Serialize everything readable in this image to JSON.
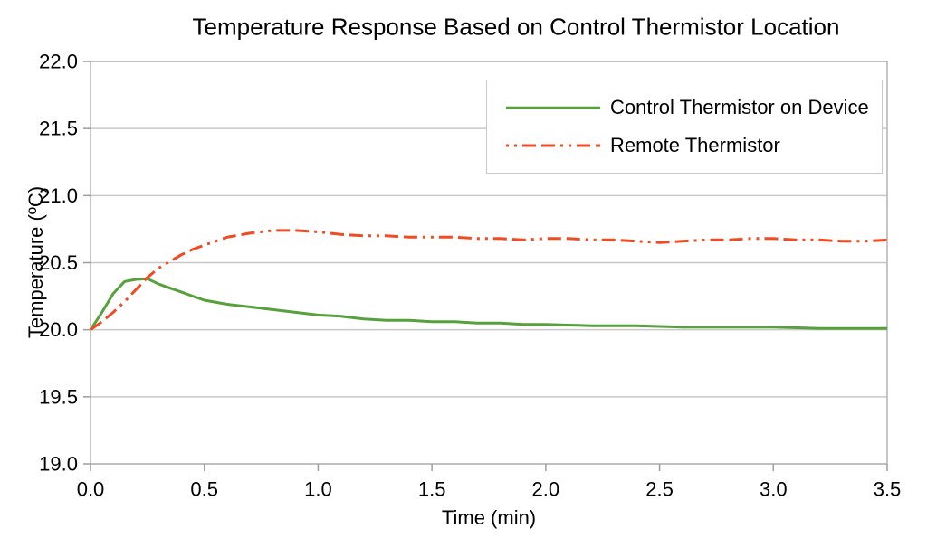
{
  "chart_data": {
    "type": "line",
    "title": "Temperature Response Based on Control Thermistor Location",
    "xlabel": "Time (min)",
    "ylabel": "Temperature (ºC)",
    "xlim": [
      0,
      3.5
    ],
    "ylim": [
      19.0,
      22.0
    ],
    "x_tick_labels": [
      "0.0",
      "0.5",
      "1.0",
      "1.5",
      "2.0",
      "2.5",
      "3.0",
      "3.5"
    ],
    "y_tick_labels": [
      "19.0",
      "19.5",
      "20.0",
      "20.5",
      "21.0",
      "21.5",
      "22.0"
    ],
    "grid": "horizontal-only",
    "legend_position": "top-right",
    "axis_color": "#b4b4b4",
    "gridline_color": "#c8c8c8",
    "tick_color": "#9e9e9e",
    "series": [
      {
        "name": "Control Thermistor on Device",
        "color": "#57a13d",
        "line_style": "solid",
        "points": [
          [
            0.0,
            20.0
          ],
          [
            0.05,
            20.13
          ],
          [
            0.1,
            20.27
          ],
          [
            0.15,
            20.36
          ],
          [
            0.2,
            20.375
          ],
          [
            0.25,
            20.38
          ],
          [
            0.3,
            20.34
          ],
          [
            0.35,
            20.31
          ],
          [
            0.4,
            20.28
          ],
          [
            0.45,
            20.25
          ],
          [
            0.5,
            20.22
          ],
          [
            0.6,
            20.19
          ],
          [
            0.7,
            20.17
          ],
          [
            0.8,
            20.15
          ],
          [
            0.9,
            20.13
          ],
          [
            1.0,
            20.11
          ],
          [
            1.1,
            20.1
          ],
          [
            1.2,
            20.08
          ],
          [
            1.3,
            20.07
          ],
          [
            1.4,
            20.07
          ],
          [
            1.5,
            20.06
          ],
          [
            1.6,
            20.06
          ],
          [
            1.7,
            20.05
          ],
          [
            1.8,
            20.05
          ],
          [
            1.9,
            20.04
          ],
          [
            2.0,
            20.04
          ],
          [
            2.2,
            20.03
          ],
          [
            2.4,
            20.03
          ],
          [
            2.6,
            20.02
          ],
          [
            2.8,
            20.02
          ],
          [
            3.0,
            20.02
          ],
          [
            3.2,
            20.01
          ],
          [
            3.4,
            20.01
          ],
          [
            3.5,
            20.01
          ]
        ]
      },
      {
        "name": "Remote Thermistor",
        "color": "#f24a21",
        "line_style": "long-dash-dash-dot-dot",
        "points": [
          [
            0.0,
            20.0
          ],
          [
            0.05,
            20.06
          ],
          [
            0.1,
            20.13
          ],
          [
            0.15,
            20.21
          ],
          [
            0.2,
            20.3
          ],
          [
            0.25,
            20.39
          ],
          [
            0.3,
            20.46
          ],
          [
            0.35,
            20.51
          ],
          [
            0.4,
            20.56
          ],
          [
            0.45,
            20.6
          ],
          [
            0.5,
            20.63
          ],
          [
            0.6,
            20.69
          ],
          [
            0.7,
            20.72
          ],
          [
            0.8,
            20.74
          ],
          [
            0.9,
            20.74
          ],
          [
            1.0,
            20.73
          ],
          [
            1.1,
            20.71
          ],
          [
            1.2,
            20.7
          ],
          [
            1.3,
            20.7
          ],
          [
            1.4,
            20.69
          ],
          [
            1.5,
            20.69
          ],
          [
            1.6,
            20.69
          ],
          [
            1.7,
            20.68
          ],
          [
            1.8,
            20.68
          ],
          [
            1.9,
            20.67
          ],
          [
            2.0,
            20.68
          ],
          [
            2.1,
            20.68
          ],
          [
            2.2,
            20.67
          ],
          [
            2.3,
            20.67
          ],
          [
            2.4,
            20.66
          ],
          [
            2.5,
            20.65
          ],
          [
            2.6,
            20.66
          ],
          [
            2.7,
            20.67
          ],
          [
            2.8,
            20.67
          ],
          [
            2.9,
            20.68
          ],
          [
            3.0,
            20.68
          ],
          [
            3.1,
            20.67
          ],
          [
            3.2,
            20.67
          ],
          [
            3.3,
            20.66
          ],
          [
            3.4,
            20.66
          ],
          [
            3.5,
            20.67
          ]
        ]
      }
    ]
  }
}
